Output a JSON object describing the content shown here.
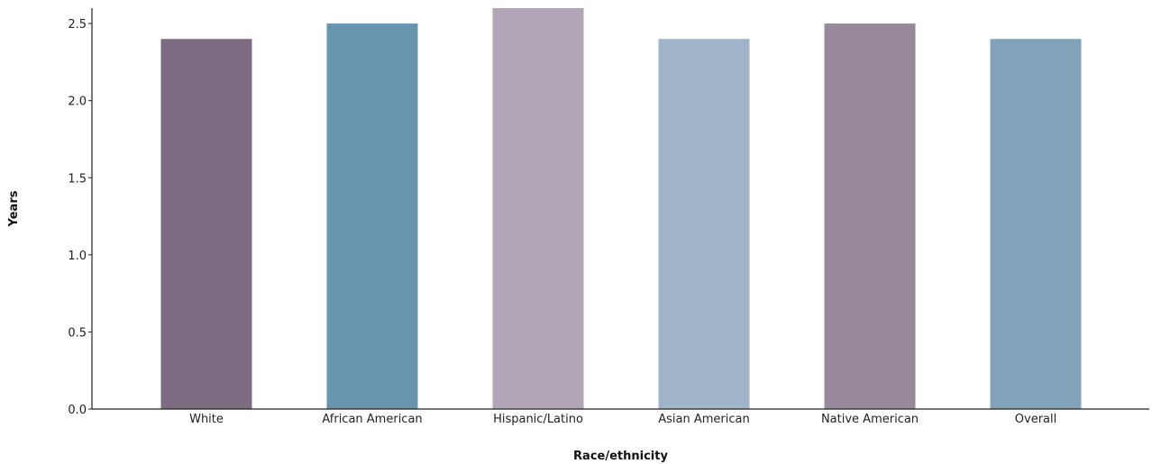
{
  "chart_data": {
    "type": "bar",
    "title": "",
    "xlabel": "Race/ethnicity",
    "ylabel": "Years",
    "categories": [
      "White",
      "African American",
      "Hispanic/Latino",
      "Asian American",
      "Native American",
      "Overall"
    ],
    "values": [
      2.4,
      2.5,
      2.6,
      2.4,
      2.5,
      2.4
    ],
    "colors": [
      "#7d6b82",
      "#6794af",
      "#b3a5b8",
      "#a0b5c9",
      "#97889c",
      "#80a3b9"
    ],
    "ylim": [
      0,
      2.6
    ],
    "yticks": [
      0.0,
      0.5,
      1.0,
      1.5,
      2.0,
      2.5
    ],
    "ytick_labels": [
      "0.0",
      "0.5",
      "1.0",
      "1.5",
      "2.0",
      "2.5"
    ],
    "grid": false,
    "legend": "none"
  }
}
